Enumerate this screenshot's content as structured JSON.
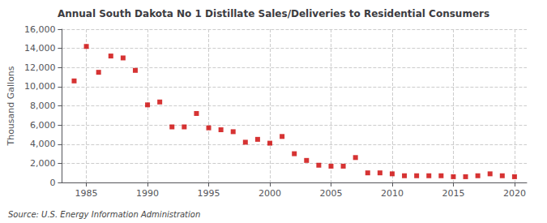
{
  "chart_data": {
    "type": "scatter",
    "title": "Annual South Dakota No 1 Distillate Sales/Deliveries to Residential Consumers",
    "ylabel": "Thousand Gallons",
    "annotation": "Source: U.S. Energy Information Administration",
    "x": [
      1984,
      1985,
      1986,
      1987,
      1988,
      1989,
      1990,
      1991,
      1992,
      1993,
      1994,
      1995,
      1996,
      1997,
      1998,
      1999,
      2000,
      2001,
      2002,
      2003,
      2004,
      2005,
      2006,
      2007,
      2008,
      2009,
      2010,
      2011,
      2012,
      2013,
      2014,
      2015,
      2016,
      2017,
      2018,
      2019,
      2020
    ],
    "values": [
      10600,
      14200,
      11500,
      13200,
      13000,
      11700,
      8100,
      8400,
      5800,
      5800,
      7200,
      5700,
      5500,
      5300,
      4200,
      4500,
      4100,
      4800,
      3000,
      2300,
      1800,
      1700,
      1700,
      2600,
      1000,
      1000,
      900,
      700,
      700,
      700,
      700,
      600,
      600,
      700,
      900,
      700,
      600
    ],
    "color": "#cc0000",
    "marker": "square",
    "xlim": [
      1983,
      2021
    ],
    "xticks": [
      1985,
      1990,
      1995,
      2000,
      2005,
      2010,
      2015,
      2020
    ],
    "ylim": [
      0,
      16000
    ],
    "yticks": [
      0,
      {
        "value": 2000,
        "label": "2,000"
      },
      {
        "value": 4000,
        "label": "4,000"
      },
      {
        "value": 6000,
        "label": "6,000"
      },
      {
        "value": 8000,
        "label": "8,000"
      },
      {
        "value": 10000,
        "label": "10,000"
      },
      {
        "value": 12000,
        "label": "12,000"
      },
      {
        "value": 14000,
        "label": "14,000"
      },
      {
        "value": 16000,
        "label": "16,000"
      }
    ],
    "grid": true
  }
}
